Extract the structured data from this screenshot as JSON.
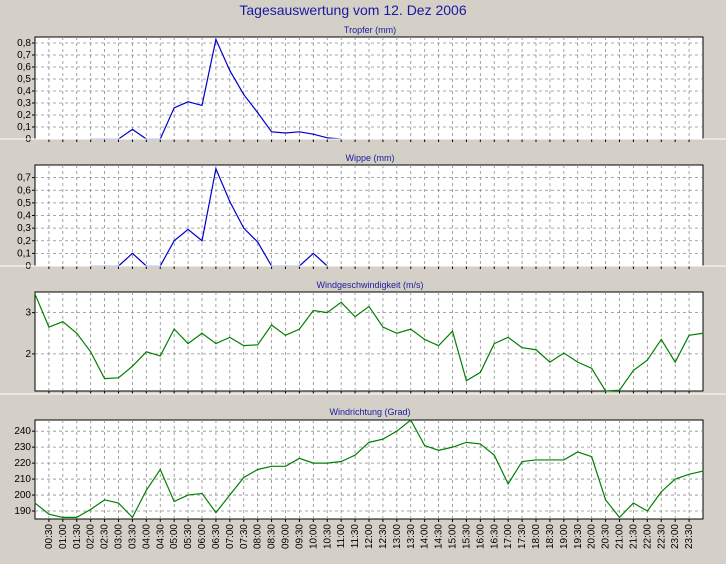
{
  "page_title": "Tagesauswertung vom 12. Dez 2006",
  "colors": {
    "background": "#d4d0c8",
    "plot_background": "#ffffff",
    "grid": "#8c8c8c",
    "title": "#1a1aa0",
    "rain_series": "#0000cc",
    "wind_series": "#008000"
  },
  "x_tick_labels": [
    "00:30",
    "01:00",
    "01:30",
    "02:00",
    "02:30",
    "03:00",
    "03:30",
    "04:00",
    "04:30",
    "05:00",
    "05:30",
    "06:00",
    "06:30",
    "07:00",
    "07:30",
    "08:00",
    "08:30",
    "09:00",
    "09:30",
    "10:00",
    "10:30",
    "11:00",
    "11:30",
    "12:00",
    "12:30",
    "13:00",
    "13:30",
    "14:00",
    "14:30",
    "15:00",
    "15:30",
    "16:00",
    "16:30",
    "17:00",
    "17:30",
    "18:00",
    "18:30",
    "19:00",
    "19:30",
    "20:00",
    "20:30",
    "21:00",
    "21:30",
    "22:00",
    "22:30",
    "23:00",
    "23:30"
  ],
  "chart_data": [
    {
      "type": "line",
      "title": "Tropfer (mm)",
      "y_ticks": [
        0,
        0.1,
        0.2,
        0.3,
        0.4,
        0.5,
        0.6,
        0.7,
        0.8
      ],
      "y_tick_labels": [
        "0",
        "0,1",
        "0,2",
        "0,3",
        "0,4",
        "0,5",
        "0,6",
        "0,7",
        "0,8"
      ],
      "ylim": [
        0,
        0.85
      ],
      "grid": true,
      "series": [
        {
          "color": "#0000cc",
          "x": [
            "02:00",
            "02:30",
            "03:00",
            "03:30",
            "04:00",
            "04:30",
            "05:00",
            "05:30",
            "06:00",
            "06:30",
            "07:00",
            "07:30",
            "08:00",
            "08:30",
            "09:00",
            "09:30",
            "10:00",
            "10:30",
            "11:00"
          ],
          "values": [
            0,
            0,
            0,
            0.08,
            0,
            0,
            0.26,
            0.31,
            0.28,
            0.83,
            0.57,
            0.37,
            0.22,
            0.06,
            0.05,
            0.06,
            0.04,
            0.01,
            0
          ]
        }
      ]
    },
    {
      "type": "line",
      "title": "Wippe (mm)",
      "y_ticks": [
        0,
        0.1,
        0.2,
        0.3,
        0.4,
        0.5,
        0.6,
        0.7
      ],
      "y_tick_labels": [
        "0",
        "0,1",
        "0,2",
        "0,3",
        "0,4",
        "0,5",
        "0,6",
        "0,7"
      ],
      "ylim": [
        0,
        0.8
      ],
      "grid": true,
      "series": [
        {
          "color": "#0000cc",
          "x": [
            "02:00",
            "02:30",
            "03:00",
            "03:30",
            "04:00",
            "04:30",
            "05:00",
            "05:30",
            "06:00",
            "06:30",
            "07:00",
            "07:30",
            "08:00",
            "08:30",
            "09:00",
            "09:30",
            "10:00",
            "10:30"
          ],
          "values": [
            0,
            0,
            0,
            0.1,
            0,
            0,
            0.2,
            0.29,
            0.2,
            0.77,
            0.51,
            0.3,
            0.19,
            0,
            0,
            0,
            0.1,
            0
          ]
        }
      ]
    },
    {
      "type": "line",
      "title": "Windgeschwindigkeit (m/s)",
      "y_ticks": [
        2,
        3
      ],
      "y_tick_labels": [
        "2",
        "3"
      ],
      "ylim": [
        1.1,
        3.5
      ],
      "grid": true,
      "series": [
        {
          "color": "#008000",
          "x": [
            "00:00",
            "00:30",
            "01:00",
            "01:30",
            "02:00",
            "02:30",
            "03:00",
            "03:30",
            "04:00",
            "04:30",
            "05:00",
            "05:30",
            "06:00",
            "06:30",
            "07:00",
            "07:30",
            "08:00",
            "08:30",
            "09:00",
            "09:30",
            "10:00",
            "10:30",
            "11:00",
            "11:30",
            "12:00",
            "12:30",
            "13:00",
            "13:30",
            "14:00",
            "14:30",
            "15:00",
            "15:30",
            "16:00",
            "16:30",
            "17:00",
            "17:30",
            "18:00",
            "18:30",
            "19:00",
            "19:30",
            "20:00",
            "20:30",
            "21:00",
            "21:30",
            "22:00",
            "22:30",
            "23:00",
            "23:30",
            "24:00"
          ],
          "values": [
            3.45,
            2.65,
            2.78,
            2.5,
            2.05,
            1.4,
            1.42,
            1.7,
            2.05,
            1.95,
            2.6,
            2.25,
            2.5,
            2.25,
            2.4,
            2.2,
            2.22,
            2.7,
            2.45,
            2.6,
            3.05,
            3.0,
            3.25,
            2.9,
            3.15,
            2.65,
            2.5,
            2.6,
            2.35,
            2.2,
            2.55,
            1.35,
            1.55,
            2.25,
            2.4,
            2.15,
            2.1,
            1.8,
            2.02,
            1.8,
            1.65,
            1.1,
            1.12,
            1.6,
            1.85,
            2.35,
            1.8,
            2.45,
            2.5
          ]
        }
      ]
    },
    {
      "type": "line",
      "title": "Windrichtung (Grad)",
      "y_ticks": [
        190,
        200,
        210,
        220,
        230,
        240
      ],
      "y_tick_labels": [
        "190",
        "200",
        "210",
        "220",
        "230",
        "240"
      ],
      "ylim": [
        185,
        247
      ],
      "grid": true,
      "series": [
        {
          "color": "#008000",
          "x": [
            "00:00",
            "00:30",
            "01:00",
            "01:30",
            "02:00",
            "02:30",
            "03:00",
            "03:30",
            "04:00",
            "04:30",
            "05:00",
            "05:30",
            "06:00",
            "06:30",
            "07:00",
            "07:30",
            "08:00",
            "08:30",
            "09:00",
            "09:30",
            "10:00",
            "10:30",
            "11:00",
            "11:30",
            "12:00",
            "12:30",
            "13:00",
            "13:30",
            "14:00",
            "14:30",
            "15:00",
            "15:30",
            "16:00",
            "16:30",
            "17:00",
            "17:30",
            "18:00",
            "18:30",
            "19:00",
            "19:30",
            "20:00",
            "20:30",
            "21:00",
            "21:30",
            "22:00",
            "22:30",
            "23:00",
            "23:30",
            "24:00"
          ],
          "values": [
            195,
            188,
            186,
            186,
            191,
            197,
            195,
            186,
            203,
            216,
            196,
            200,
            201,
            189,
            200,
            211,
            216,
            218,
            218,
            223,
            220,
            220,
            221,
            225,
            233,
            235,
            240,
            247,
            231,
            228,
            230,
            233,
            232,
            225,
            207,
            221,
            222,
            222,
            222,
            227,
            224,
            197,
            186,
            195,
            190,
            202,
            210,
            213,
            215
          ]
        }
      ]
    }
  ]
}
